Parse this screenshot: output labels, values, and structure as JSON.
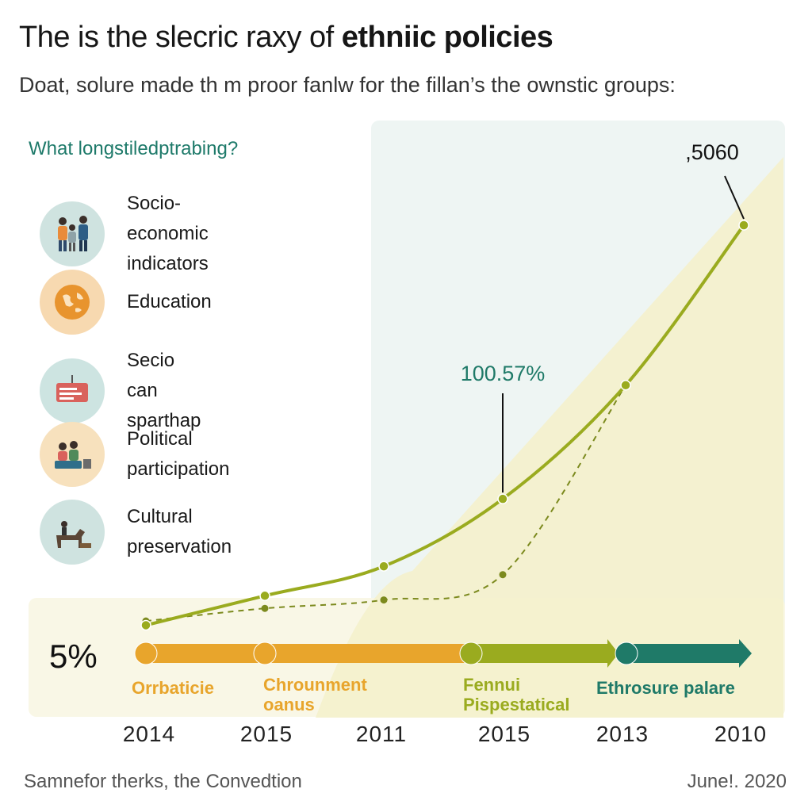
{
  "header": {
    "title_regular": "The is the slecric raxy of ",
    "title_bold": "ethniic policies",
    "subtitle": "Doat, solure made th m proor fanlw for the fillan’s the ownstic groups:"
  },
  "legend": {
    "question": "What longstiledptrabing?",
    "items": [
      {
        "label_line1": "Socio-economic",
        "label_line2": "indicators",
        "icon": "people-group-icon",
        "color": "#cfe3e0"
      },
      {
        "label_line1": "Education",
        "label_line2": "",
        "icon": "globe-icon",
        "color": "#f7d9b0"
      },
      {
        "label_line1": "Secio can sparthap",
        "label_line2": "",
        "icon": "sign-board-icon",
        "color": "#cde4e1"
      },
      {
        "label_line1": "Political participation",
        "label_line2": "",
        "icon": "community-meeting-icon",
        "color": "#f7e1bd"
      },
      {
        "label_line1": "Cultural preservation",
        "label_line2": "",
        "icon": "horse-rider-icon",
        "color": "#cfe3e0"
      }
    ]
  },
  "chart_data": {
    "type": "line",
    "title": "The is the slecric raxy of ethniic policies",
    "x_labels": [
      "2014",
      "2015",
      "2011",
      "2015",
      "2013",
      "2010"
    ],
    "series": [
      {
        "name": "solid",
        "style": "solid",
        "color": "#9aab1f",
        "values": [
          5,
          12,
          19,
          35,
          62,
          100
        ]
      },
      {
        "name": "dashed",
        "style": "dashed",
        "color": "#7c8a1e",
        "values": [
          6,
          9,
          11,
          17,
          62
        ]
      }
    ],
    "ylim": [
      0,
      100
    ],
    "annotations": [
      {
        "text": "100.57%",
        "series": "solid",
        "point_index": 3
      },
      {
        "text": ",5060",
        "series": "solid",
        "point_index": 5
      }
    ],
    "left_label": "5%",
    "stages": [
      {
        "name_line1": "Orrbaticie",
        "name_line2": "",
        "color": "#e8a52c"
      },
      {
        "name_line1": "Chrounment",
        "name_line2": "oanus",
        "color": "#e8a52c"
      },
      {
        "name_line1": "Fennui",
        "name_line2": "Pispestatical",
        "color": "#9aab1f"
      },
      {
        "name_line1": "Ethrosure palare",
        "name_line2": "",
        "color": "#1f7a68"
      }
    ]
  },
  "footer": {
    "source": "Samnefor therks, the Convedtion",
    "date": "June!. 2020"
  },
  "colors": {
    "accent_orange": "#e8a52c",
    "accent_olive": "#9aab1f",
    "accent_teal": "#1f7a68",
    "fill_pale": "#f4f1cc"
  }
}
